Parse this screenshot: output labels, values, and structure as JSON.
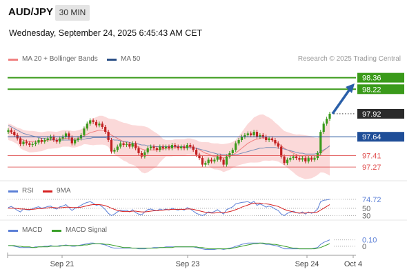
{
  "header": {
    "symbol": "AUD/JPY",
    "timeframe": "30 MIN",
    "datetime": "Wednesday, September 24, 2025 6:45:43 AM CET",
    "copyright": "Research © 2025 Trading Central"
  },
  "legend": {
    "main": [
      {
        "label": "MA 20 + Bollinger Bands",
        "color": "#f08080"
      },
      {
        "label": "MA 50",
        "color": "#2b4f86"
      }
    ],
    "rsi": [
      {
        "label": "RSI",
        "color": "#5b7fd6"
      },
      {
        "label": "9MA",
        "color": "#d62020"
      }
    ],
    "macd": [
      {
        "label": "MACD",
        "color": "#5b7fd6"
      },
      {
        "label": "MACD Signal",
        "color": "#3aa02a"
      }
    ]
  },
  "chart_data": [
    {
      "type": "candlestick",
      "ylim": [
        97.12,
        98.5
      ],
      "x_labels": [
        "Sep 21",
        "Sep 23",
        "Sep 24",
        "Oct 4"
      ],
      "levels": [
        {
          "label": "98.36",
          "value": 98.36,
          "color": "#3a9a1a"
        },
        {
          "label": "98.22",
          "value": 98.22,
          "color": "#3a9a1a"
        },
        {
          "label": "97.92",
          "value": 97.92,
          "color": "#222222",
          "style": "dotted"
        },
        {
          "label": "97.64",
          "value": 97.64,
          "color": "#1f4e98"
        },
        {
          "label": "97.41",
          "value": 97.41,
          "color": "#e05050"
        },
        {
          "label": "97.27",
          "value": 97.27,
          "color": "#e05050"
        }
      ],
      "close_series": [
        97.72,
        97.7,
        97.66,
        97.62,
        97.55,
        97.58,
        97.56,
        97.54,
        97.55,
        97.57,
        97.6,
        97.58,
        97.6,
        97.62,
        97.64,
        97.6,
        97.58,
        97.62,
        97.64,
        97.68,
        97.63,
        97.56,
        97.6,
        97.62,
        97.66,
        97.74,
        97.8,
        97.84,
        97.82,
        97.78,
        97.8,
        97.76,
        97.7,
        97.6,
        97.46,
        97.48,
        97.52,
        97.56,
        97.54,
        97.55,
        97.52,
        97.56,
        97.5,
        97.44,
        97.4,
        97.45,
        97.5,
        97.52,
        97.5,
        97.48,
        97.52,
        97.5,
        97.52,
        97.5,
        97.54,
        97.52,
        97.5,
        97.52,
        97.5,
        97.54,
        97.52,
        97.48,
        97.42,
        97.38,
        97.3,
        97.32,
        97.36,
        97.34,
        97.36,
        97.4,
        97.36,
        97.3,
        97.4,
        97.44,
        97.48,
        97.56,
        97.6,
        97.64,
        97.66,
        97.68,
        97.66,
        97.7,
        97.64,
        97.66,
        97.64,
        97.6,
        97.62,
        97.6,
        97.56,
        97.52,
        97.4,
        97.32,
        97.36,
        97.38,
        97.4,
        97.38,
        97.36,
        97.38,
        97.34,
        97.38,
        97.36,
        97.38,
        97.44,
        97.7,
        97.8,
        97.86,
        97.92
      ],
      "ma20_series": [
        97.7,
        97.69,
        97.67,
        97.65,
        97.62,
        97.6,
        97.59,
        97.58,
        97.58,
        97.58,
        97.58,
        97.58,
        97.59,
        97.6,
        97.6,
        97.6,
        97.6,
        97.61,
        97.62,
        97.62,
        97.62,
        97.61,
        97.61,
        97.62,
        97.63,
        97.65,
        97.67,
        97.69,
        97.7,
        97.71,
        97.72,
        97.72,
        97.71,
        97.69,
        97.66,
        97.64,
        97.62,
        97.6,
        97.58,
        97.57,
        97.55,
        97.54,
        97.53,
        97.51,
        97.49,
        97.48,
        97.48,
        97.48,
        97.48,
        97.48,
        97.49,
        97.49,
        97.5,
        97.5,
        97.5,
        97.51,
        97.51,
        97.51,
        97.51,
        97.52,
        97.52,
        97.51,
        97.5,
        97.48,
        97.46,
        97.44,
        97.43,
        97.41,
        97.4,
        97.4,
        97.39,
        97.38,
        97.39,
        97.4,
        97.42,
        97.44,
        97.47,
        97.5,
        97.53,
        97.56,
        97.58,
        97.6,
        97.61,
        97.62,
        97.63,
        97.62,
        97.61,
        97.6,
        97.58,
        97.56,
        97.53,
        97.5,
        97.48,
        97.46,
        97.44,
        97.42,
        97.41,
        97.4,
        97.39,
        97.39,
        97.39,
        97.39,
        97.4,
        97.44,
        97.47,
        97.5,
        97.53
      ],
      "ma50_series": [
        97.78,
        97.76,
        97.74,
        97.72,
        97.7,
        97.68,
        97.67,
        97.66,
        97.65,
        97.64,
        97.63,
        97.62,
        97.62,
        97.61,
        97.61,
        97.6,
        97.6,
        97.6,
        97.6,
        97.6,
        97.6,
        97.6,
        97.6,
        97.6,
        97.61,
        97.61,
        97.62,
        97.62,
        97.63,
        97.63,
        97.63,
        97.63,
        97.63,
        97.62,
        97.61,
        97.6,
        97.6,
        97.59,
        97.58,
        97.58,
        97.57,
        97.56,
        97.56,
        97.55,
        97.54,
        97.54,
        97.53,
        97.53,
        97.52,
        97.52,
        97.52,
        97.52,
        97.52,
        97.52,
        97.52,
        97.52,
        97.52,
        97.52,
        97.52,
        97.51,
        97.51,
        97.5,
        97.5,
        97.49,
        97.48,
        97.47,
        97.46,
        97.45,
        97.44,
        97.43,
        97.43,
        97.42,
        97.42,
        97.42,
        97.42,
        97.42,
        97.43,
        97.44,
        97.45,
        97.46,
        97.47,
        97.48,
        97.49,
        97.5,
        97.5,
        97.51,
        97.51,
        97.51,
        97.51,
        97.5,
        97.5,
        97.49,
        97.48,
        97.47,
        97.46,
        97.45,
        97.44,
        97.44,
        97.43,
        97.43,
        97.43,
        97.43,
        97.44,
        97.46,
        97.48,
        97.5,
        97.53
      ]
    },
    {
      "type": "line",
      "name": "RSI",
      "ylim": [
        25,
        80
      ],
      "tick_labels": [
        "74.72",
        "50",
        "30"
      ],
      "ticks": [
        74.72,
        50,
        30
      ],
      "rsi_series": [
        52,
        55,
        50,
        44,
        40,
        48,
        46,
        45,
        49,
        52,
        54,
        50,
        52,
        55,
        56,
        50,
        48,
        54,
        56,
        60,
        52,
        44,
        50,
        53,
        58,
        63,
        66,
        68,
        64,
        58,
        60,
        54,
        46,
        36,
        30,
        34,
        40,
        45,
        43,
        45,
        40,
        46,
        38,
        34,
        32,
        40,
        46,
        48,
        45,
        43,
        48,
        45,
        48,
        45,
        50,
        47,
        45,
        48,
        45,
        52,
        48,
        42,
        36,
        33,
        30,
        34,
        40,
        38,
        41,
        46,
        40,
        34,
        46,
        50,
        54,
        62,
        64,
        66,
        67,
        68,
        64,
        69,
        58,
        62,
        58,
        53,
        56,
        53,
        48,
        44,
        34,
        30,
        36,
        39,
        42,
        38,
        36,
        40,
        34,
        40,
        36,
        40,
        48,
        68,
        72,
        73,
        74.72
      ],
      "ma9_series": [
        50,
        50,
        50,
        49,
        48,
        48,
        47,
        47,
        47,
        48,
        49,
        49,
        50,
        51,
        52,
        52,
        51,
        51,
        52,
        53,
        53,
        52,
        52,
        52,
        53,
        55,
        57,
        59,
        60,
        60,
        60,
        59,
        57,
        54,
        50,
        47,
        44,
        42,
        41,
        41,
        41,
        42,
        42,
        41,
        40,
        40,
        41,
        42,
        43,
        43,
        44,
        45,
        46,
        46,
        47,
        47,
        47,
        47,
        47,
        48,
        48,
        47,
        45,
        43,
        41,
        39,
        38,
        37,
        37,
        38,
        38,
        38,
        39,
        41,
        43,
        46,
        49,
        53,
        56,
        59,
        62,
        64,
        64,
        64,
        63,
        62,
        61,
        59,
        57,
        55,
        51,
        47,
        44,
        42,
        40,
        38,
        37,
        37,
        37,
        38,
        38,
        38,
        40,
        45,
        50,
        55,
        60
      ]
    },
    {
      "type": "line",
      "name": "MACD",
      "ylim": [
        -0.12,
        0.16
      ],
      "tick_labels": [
        "0.10",
        "0"
      ],
      "ticks": [
        0.1,
        0
      ],
      "macd_series": [
        0.01,
        0.01,
        0.0,
        -0.01,
        -0.02,
        -0.02,
        -0.02,
        -0.02,
        -0.02,
        -0.01,
        -0.01,
        -0.01,
        0.0,
        0.0,
        0.01,
        0.0,
        0.0,
        0.01,
        0.01,
        0.02,
        0.01,
        0.0,
        0.0,
        0.01,
        0.02,
        0.03,
        0.04,
        0.05,
        0.05,
        0.04,
        0.04,
        0.03,
        0.02,
        0.0,
        -0.02,
        -0.03,
        -0.03,
        -0.03,
        -0.03,
        -0.03,
        -0.03,
        -0.03,
        -0.03,
        -0.04,
        -0.04,
        -0.04,
        -0.03,
        -0.03,
        -0.02,
        -0.02,
        -0.02,
        -0.02,
        -0.01,
        -0.01,
        -0.01,
        -0.01,
        -0.01,
        -0.01,
        -0.01,
        -0.01,
        -0.01,
        -0.01,
        -0.02,
        -0.03,
        -0.04,
        -0.05,
        -0.05,
        -0.05,
        -0.05,
        -0.04,
        -0.04,
        -0.05,
        -0.04,
        -0.03,
        -0.02,
        0.0,
        0.01,
        0.03,
        0.04,
        0.05,
        0.05,
        0.05,
        0.05,
        0.05,
        0.04,
        0.03,
        0.03,
        0.02,
        0.01,
        0.0,
        -0.02,
        -0.04,
        -0.04,
        -0.04,
        -0.04,
        -0.04,
        -0.04,
        -0.04,
        -0.04,
        -0.04,
        -0.04,
        -0.03,
        -0.02,
        0.03,
        0.06,
        0.08,
        0.1
      ],
      "signal_series": [
        0.01,
        0.01,
        0.01,
        0.0,
        0.0,
        -0.01,
        -0.01,
        -0.01,
        -0.02,
        -0.02,
        -0.01,
        -0.01,
        -0.01,
        -0.01,
        0.0,
        0.0,
        0.0,
        0.0,
        0.01,
        0.01,
        0.01,
        0.01,
        0.01,
        0.01,
        0.01,
        0.02,
        0.02,
        0.03,
        0.04,
        0.04,
        0.04,
        0.04,
        0.03,
        0.03,
        0.02,
        0.01,
        0.0,
        -0.01,
        -0.02,
        -0.02,
        -0.02,
        -0.03,
        -0.03,
        -0.03,
        -0.03,
        -0.03,
        -0.03,
        -0.03,
        -0.03,
        -0.03,
        -0.02,
        -0.02,
        -0.02,
        -0.02,
        -0.02,
        -0.01,
        -0.01,
        -0.01,
        -0.01,
        -0.01,
        -0.01,
        -0.01,
        -0.01,
        -0.02,
        -0.02,
        -0.03,
        -0.04,
        -0.04,
        -0.04,
        -0.04,
        -0.04,
        -0.04,
        -0.04,
        -0.04,
        -0.03,
        -0.02,
        -0.01,
        0.0,
        0.01,
        0.02,
        0.03,
        0.04,
        0.04,
        0.05,
        0.05,
        0.04,
        0.04,
        0.03,
        0.03,
        0.02,
        0.01,
        0.0,
        -0.01,
        -0.02,
        -0.03,
        -0.03,
        -0.04,
        -0.04,
        -0.04,
        -0.04,
        -0.04,
        -0.04,
        -0.03,
        -0.02,
        0.0,
        0.02,
        0.04
      ]
    }
  ],
  "colors": {
    "candle_up": "#3a9a1a",
    "candle_down": "#c02020",
    "band_fill": "#fbd5d5",
    "arrow": "#2a5fa8",
    "support": "#e05050",
    "resistance": "#3a9a1a",
    "pivot": "#1f4e98"
  }
}
